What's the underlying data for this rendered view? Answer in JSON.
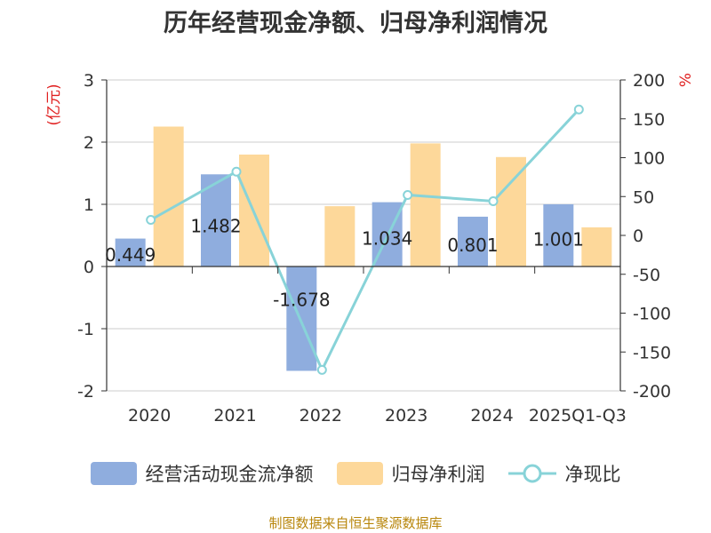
{
  "title": "历年经营现金净额、归母净利润情况",
  "source": "制图数据来自恒生聚源数据库",
  "chart_data": {
    "type": "bar",
    "categories": [
      "2020",
      "2021",
      "2022",
      "2023",
      "2024",
      "2025Q1-Q3"
    ],
    "series": [
      {
        "name": "经营活动现金流净额",
        "type": "bar",
        "axis": "left",
        "color": "#8fadde",
        "values": [
          0.449,
          1.482,
          -1.678,
          1.034,
          0.801,
          1.001
        ],
        "labels": [
          "0.449",
          "1.482",
          "-1.678",
          "1.034",
          "0.801",
          "1.001"
        ]
      },
      {
        "name": "归母净利润",
        "type": "bar",
        "axis": "left",
        "color": "#fdd89a",
        "values": [
          2.25,
          1.8,
          0.97,
          1.98,
          1.76,
          0.63
        ]
      },
      {
        "name": "净现比",
        "type": "line",
        "axis": "right",
        "color": "#88d3d8",
        "values": [
          20,
          82,
          -173,
          52,
          44,
          162
        ]
      }
    ],
    "left_axis": {
      "unit": "(亿元)",
      "min": -2,
      "max": 3,
      "ticks": [
        "3",
        "2",
        "1",
        "0",
        "-1",
        "-2"
      ]
    },
    "right_axis": {
      "unit": "%",
      "min": -200,
      "max": 200,
      "ticks": [
        "200",
        "150",
        "100",
        "50",
        "0",
        "-50",
        "-100",
        "-150",
        "-200"
      ]
    },
    "legend_position": "bottom"
  }
}
